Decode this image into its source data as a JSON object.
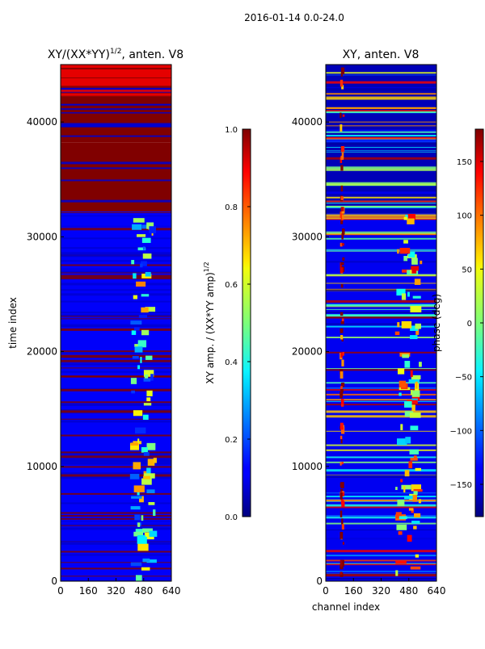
{
  "figure": {
    "suptitle": "2016-01-14 0.0-24.0"
  },
  "chart_data": [
    {
      "type": "heatmap",
      "title": "XY/(XX*YY)",
      "title_sup": "1/2",
      "title_suffix": ", anten. V8",
      "xlabel": "",
      "ylabel": "time index",
      "xlim": [
        0,
        640
      ],
      "ylim": [
        0,
        45000
      ],
      "xticks": [
        0,
        160,
        320,
        480,
        640
      ],
      "yticks": [
        0,
        10000,
        20000,
        30000,
        40000
      ],
      "colormap": "jet",
      "colorbar": {
        "label": "XY amp. / (XX*YY amp)",
        "label_sup": "1/2",
        "range": [
          0.0,
          1.0
        ],
        "ticks": [
          "0.0",
          "0.2",
          "0.4",
          "0.6",
          "0.8",
          "1.0"
        ],
        "tick_values": [
          0.0,
          0.2,
          0.4,
          0.6,
          0.8,
          1.0
        ]
      },
      "regions": [
        {
          "t0": 0,
          "t1": 32200,
          "value": 0.12,
          "note": "background low amplitude"
        },
        {
          "t0": 32200,
          "t1": 38200,
          "value": 1.0,
          "note": "saturated"
        },
        {
          "t0": 38200,
          "t1": 42200,
          "value": 1.0,
          "note": "saturated"
        },
        {
          "t0": 42200,
          "t1": 45000,
          "value": 0.9
        }
      ],
      "features": [
        {
          "channel_range": [
            400,
            560
          ],
          "time_range": [
            0,
            32000
          ],
          "value": 0.45,
          "note": "elevated band"
        }
      ]
    },
    {
      "type": "heatmap",
      "title": "XY, anten. V8",
      "xlabel": "channel index",
      "ylabel": "",
      "xlim": [
        0,
        640
      ],
      "ylim": [
        0,
        45000
      ],
      "xticks": [
        0,
        160,
        320,
        480,
        640
      ],
      "yticks": [
        0,
        10000,
        20000,
        30000,
        40000
      ],
      "colormap": "jet",
      "colorbar": {
        "label": "phase (deg)",
        "range": [
          -180,
          180
        ],
        "ticks": [
          "−150",
          "−100",
          "−50",
          "0",
          "50",
          "100",
          "150"
        ],
        "tick_values": [
          -150,
          -100,
          -50,
          0,
          50,
          100,
          150
        ]
      },
      "regions": [
        {
          "t0": 0,
          "t1": 32000,
          "value": -140,
          "note": "mostly blue phase"
        },
        {
          "t0": 32000,
          "t1": 45000,
          "value": -160,
          "note": "dark blue"
        }
      ],
      "features": [
        {
          "channel_range": [
            80,
            110
          ],
          "time_range": [
            0,
            45000
          ],
          "value": 170,
          "note": "red stripe"
        },
        {
          "channel_range": [
            400,
            560
          ],
          "time_range": [
            0,
            32000
          ],
          "value": 40,
          "note": "mixed phase band"
        }
      ]
    }
  ]
}
